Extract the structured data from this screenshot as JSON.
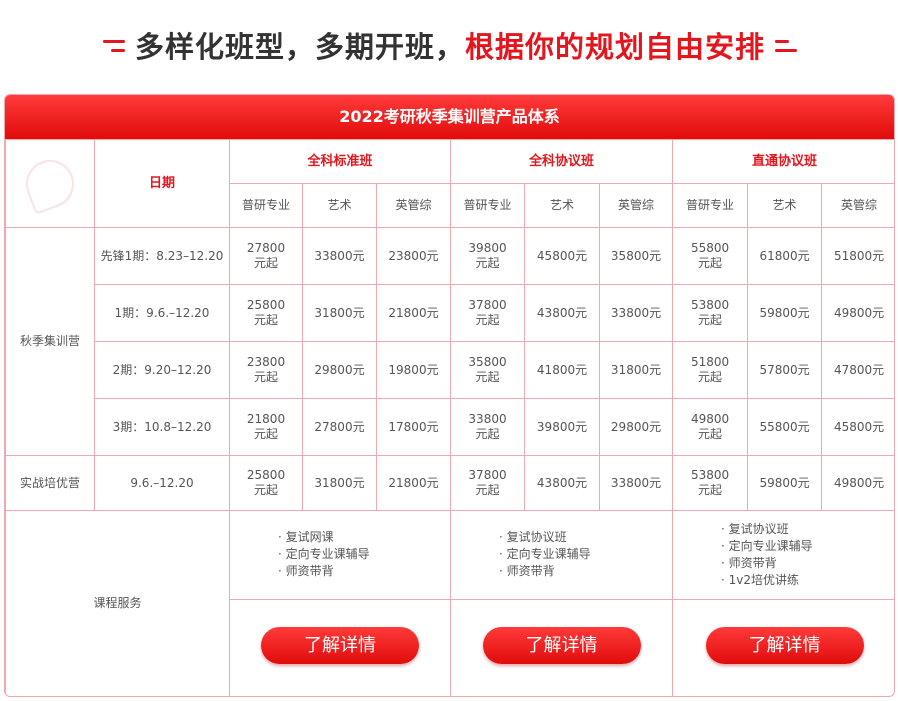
{
  "headline": {
    "dark": "多样化班型，多期开班，",
    "red": "根据你的规划自由安排"
  },
  "banner": "2022考研秋季集训营产品体系",
  "header": {
    "date": "日期",
    "groups": [
      "全科标准班",
      "全科协议班",
      "直通协议班"
    ],
    "subs": [
      "普研专业",
      "艺术",
      "英管综"
    ]
  },
  "sections": [
    {
      "label": "秋季集训营"
    },
    {
      "label": "实战培优营"
    }
  ],
  "rows": [
    {
      "period": "先锋1期：8.23–12.20",
      "prices": [
        "27800\n元起",
        "33800元",
        "23800元",
        "39800\n元起",
        "45800元",
        "35800元",
        "55800\n元起",
        "61800元",
        "51800元"
      ]
    },
    {
      "period": "1期：9.6.–12.20",
      "prices": [
        "25800\n元起",
        "31800元",
        "21800元",
        "37800\n元起",
        "43800元",
        "33800元",
        "53800\n元起",
        "59800元",
        "49800元"
      ]
    },
    {
      "period": "2期：9.20–12.20",
      "prices": [
        "23800\n元起",
        "29800元",
        "19800元",
        "35800\n元起",
        "41800元",
        "31800元",
        "51800\n元起",
        "57800元",
        "47800元"
      ]
    },
    {
      "period": "3期：10.8–12.20",
      "prices": [
        "21800\n元起",
        "27800元",
        "17800元",
        "33800\n元起",
        "39800元",
        "29800元",
        "49800\n元起",
        "55800元",
        "45800元"
      ]
    },
    {
      "period": "9.6.–12.20",
      "prices": [
        "25800\n元起",
        "31800元",
        "21800元",
        "37800\n元起",
        "43800元",
        "33800元",
        "53800\n元起",
        "59800元",
        "49800元"
      ]
    }
  ],
  "services": {
    "label": "课程服务",
    "groups": [
      [
        "复试网课",
        "定向专业课辅导",
        "师资带背"
      ],
      [
        "复试协议班",
        "定向专业课辅导",
        "师资带背"
      ],
      [
        "复试协议班",
        "定向专业课辅导",
        "师资带背",
        "1v2培优讲练"
      ]
    ],
    "button": "了解详情"
  },
  "colors": {
    "accent": "#e4161d",
    "border": "#f0a8b0"
  }
}
